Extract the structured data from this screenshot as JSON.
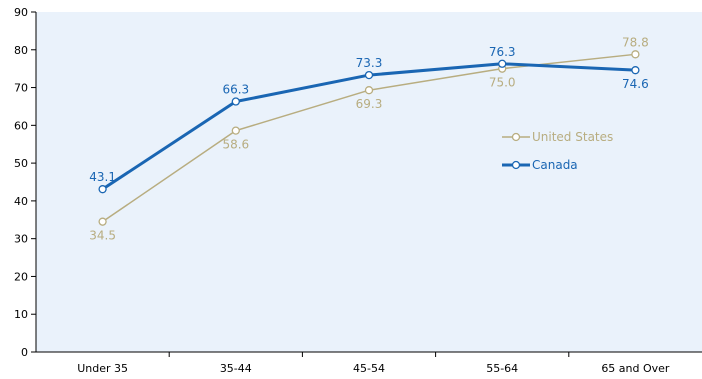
{
  "chart_data": {
    "type": "line",
    "categories": [
      "Under 35",
      "35-44",
      "45-54",
      "55-64",
      "65 and Over"
    ],
    "ylim": [
      0,
      90
    ],
    "yticks": [
      0,
      10,
      20,
      30,
      40,
      50,
      60,
      70,
      80,
      90
    ],
    "grid": false,
    "legend_position": "right",
    "series": [
      {
        "name": "United States",
        "color": "#b8ad80",
        "values": [
          34.5,
          58.6,
          69.3,
          75.0,
          78.8
        ],
        "labels": [
          "34.5",
          "58.6",
          "69.3",
          "75.0",
          "78.8"
        ]
      },
      {
        "name": "Canada",
        "color": "#1a66b3",
        "values": [
          43.1,
          66.3,
          73.3,
          76.3,
          74.6
        ],
        "labels": [
          "43.1",
          "66.3",
          "73.3",
          "76.3",
          "74.6"
        ]
      }
    ]
  },
  "colors": {
    "plot_background": "#eaf2fb",
    "axis": "#000000"
  }
}
